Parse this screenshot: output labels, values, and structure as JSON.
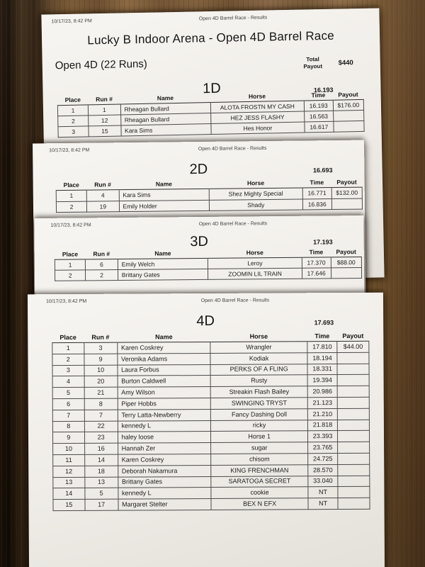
{
  "colors": {
    "wood_dark": "#2b1d10",
    "wood_mid": "#6f5030",
    "wood_light": "#8a6843",
    "paper": "#f2efea",
    "ink": "#1c1c1c"
  },
  "pages": [
    {
      "print_header_left": "10/17/23, 8:42 PM",
      "print_header_center": "Open 4D Barrel Race - Results",
      "title": "Lucky B Indoor Arena - Open 4D Barrel Race",
      "subtitle": "Open 4D (22 Runs)",
      "total_payout_label": "Total Payout",
      "total_payout_value": "$440",
      "section": {
        "name": "1D",
        "time": "16.193",
        "columns": [
          "Place",
          "Run #",
          "Name",
          "Horse",
          "Time",
          "Payout"
        ],
        "rows": [
          [
            "1",
            "1",
            "Rheagan Bullard",
            "ALOTA FROSTN MY CASH",
            "16.193",
            "$176.00"
          ],
          [
            "2",
            "12",
            "Rheagan Bullard",
            "HEZ JESS FLASHY",
            "16.563",
            ""
          ],
          [
            "3",
            "15",
            "Kara Sims",
            "Hes Honor",
            "16.617",
            ""
          ]
        ]
      }
    },
    {
      "print_header_left": "10/17/23, 8:42 PM",
      "print_header_center": "Open 4D Barrel Race - Results",
      "section": {
        "name": "2D",
        "time": "16.693",
        "columns": [
          "Place",
          "Run #",
          "Name",
          "Horse",
          "Time",
          "Payout"
        ],
        "rows": [
          [
            "1",
            "4",
            "Kara Sims",
            "Shez Mighty Special",
            "16.771",
            "$132.00"
          ],
          [
            "2",
            "19",
            "Emily Holder",
            "Shady",
            "16.836",
            ""
          ]
        ]
      }
    },
    {
      "print_header_left": "10/17/23, 8:42 PM",
      "print_header_center": "Open 4D Barrel Race - Results",
      "section": {
        "name": "3D",
        "time": "17.193",
        "columns": [
          "Place",
          "Run #",
          "Name",
          "Horse",
          "Time",
          "Payout"
        ],
        "rows": [
          [
            "1",
            "6",
            "Emily Welch",
            "Leroy",
            "17.370",
            "$88.00"
          ],
          [
            "2",
            "2",
            "Brittany Gates",
            "ZOOMIN LIL TRAIN",
            "17.646",
            ""
          ]
        ]
      }
    },
    {
      "print_header_left": "10/17/23, 8:42 PM",
      "print_header_center": "Open 4D Barrel Race - Results",
      "section": {
        "name": "4D",
        "time": "17.693",
        "columns": [
          "Place",
          "Run #",
          "Name",
          "Horse",
          "Time",
          "Payout"
        ],
        "rows": [
          [
            "1",
            "3",
            "Karen Coskrey",
            "Wrangler",
            "17.810",
            "$44.00"
          ],
          [
            "2",
            "9",
            "Veronika Adams",
            "Kodiak",
            "18.194",
            ""
          ],
          [
            "3",
            "10",
            "Laura Forbus",
            "PERKS OF A FLING",
            "18.331",
            ""
          ],
          [
            "4",
            "20",
            "Burton Caldwell",
            "Rusty",
            "19.394",
            ""
          ],
          [
            "5",
            "21",
            "Amy Wilson",
            "Streakin Flash Bailey",
            "20.986",
            ""
          ],
          [
            "6",
            "8",
            "Piper Hobbs",
            "SWINGING TRYST",
            "21.123",
            ""
          ],
          [
            "7",
            "7",
            "Terry Latta-Newberry",
            "Fancy Dashing Doll",
            "21.210",
            ""
          ],
          [
            "8",
            "22",
            "kennedy L",
            "ricky",
            "21.818",
            ""
          ],
          [
            "9",
            "23",
            "haley loose",
            "Horse 1",
            "23.393",
            ""
          ],
          [
            "10",
            "16",
            "Hannah Zer",
            "sugar",
            "23.765",
            ""
          ],
          [
            "11",
            "14",
            "Karen Coskrey",
            "chisom",
            "24.725",
            ""
          ],
          [
            "12",
            "18",
            "Deborah Nakamura",
            "KING FRENCHMAN",
            "28.570",
            ""
          ],
          [
            "13",
            "13",
            "Brittany Gates",
            "SARATOGA SECRET",
            "33.040",
            ""
          ],
          [
            "14",
            "5",
            "kennedy L",
            "cookie",
            "NT",
            ""
          ],
          [
            "15",
            "17",
            "Margaret Stelter",
            "BEX N EFX",
            "NT",
            ""
          ]
        ]
      }
    }
  ]
}
